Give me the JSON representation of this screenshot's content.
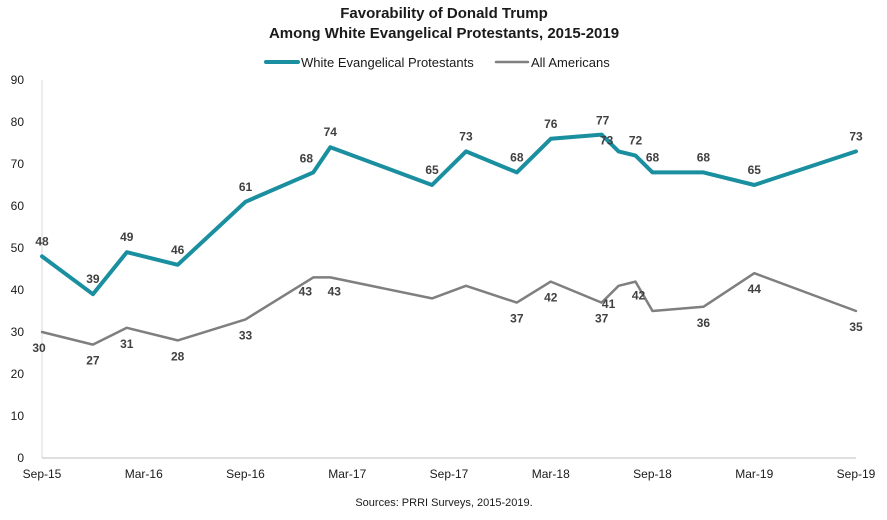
{
  "chart_data": {
    "type": "line",
    "title": "Favorability of Donald Trump",
    "subtitle": "Among White Evangelical Protestants, 2015-2019",
    "source": "Sources: PRRI Surveys, 2015-2019.",
    "xlabel": "",
    "ylabel": "",
    "ylim": [
      0,
      90
    ],
    "yticks": [
      "0",
      "10",
      "20",
      "30",
      "40",
      "50",
      "60",
      "70",
      "80",
      "90"
    ],
    "xticks": [
      "Sep-15",
      "Mar-16",
      "Sep-16",
      "Mar-17",
      "Sep-17",
      "Mar-18",
      "Sep-18",
      "Mar-19",
      "Sep-19"
    ],
    "grid": false,
    "legend_position": "top-center",
    "series": [
      {
        "name": "White Evangelical Protestants",
        "color": "#1a8fa0",
        "points": [
          {
            "x": "2015-09",
            "y": 48
          },
          {
            "x": "2015-12",
            "y": 39
          },
          {
            "x": "2016-02",
            "y": 49
          },
          {
            "x": "2016-05",
            "y": 46
          },
          {
            "x": "2016-09",
            "y": 61
          },
          {
            "x": "2017-01",
            "y": 68
          },
          {
            "x": "2017-02",
            "y": 74
          },
          {
            "x": "2017-08",
            "y": 65
          },
          {
            "x": "2017-10",
            "y": 73
          },
          {
            "x": "2018-01",
            "y": 68
          },
          {
            "x": "2018-03",
            "y": 76
          },
          {
            "x": "2018-06",
            "y": 77
          },
          {
            "x": "2018-07",
            "y": 73
          },
          {
            "x": "2018-08",
            "y": 72
          },
          {
            "x": "2018-09",
            "y": 68
          },
          {
            "x": "2018-12",
            "y": 68
          },
          {
            "x": "2019-03",
            "y": 65
          },
          {
            "x": "2019-09",
            "y": 73
          }
        ],
        "labels": [
          "48",
          "39",
          "49",
          "46",
          "61",
          "68",
          "74",
          "65",
          "73",
          "68",
          "76",
          "77",
          "73",
          "72",
          "68",
          "68",
          "65",
          "73"
        ]
      },
      {
        "name": "All Americans",
        "color": "#7f7f7f",
        "points": [
          {
            "x": "2015-09",
            "y": 30
          },
          {
            "x": "2015-12",
            "y": 27
          },
          {
            "x": "2016-02",
            "y": 31
          },
          {
            "x": "2016-05",
            "y": 28
          },
          {
            "x": "2016-09",
            "y": 33
          },
          {
            "x": "2017-01",
            "y": 43
          },
          {
            "x": "2017-02",
            "y": 43
          },
          {
            "x": "2017-08",
            "y": 38
          },
          {
            "x": "2017-10",
            "y": 41
          },
          {
            "x": "2018-01",
            "y": 37
          },
          {
            "x": "2018-03",
            "y": 42
          },
          {
            "x": "2018-06",
            "y": 37
          },
          {
            "x": "2018-07",
            "y": 41
          },
          {
            "x": "2018-08",
            "y": 42
          },
          {
            "x": "2018-09",
            "y": 35
          },
          {
            "x": "2018-12",
            "y": 36
          },
          {
            "x": "2019-03",
            "y": 44
          },
          {
            "x": "2019-09",
            "y": 35
          }
        ],
        "labels": [
          "30",
          "27",
          "31",
          "28",
          "33",
          "43",
          "43",
          "",
          "",
          "37",
          "42",
          "37",
          "41",
          "42",
          "",
          "36",
          "44",
          "35"
        ]
      }
    ]
  }
}
